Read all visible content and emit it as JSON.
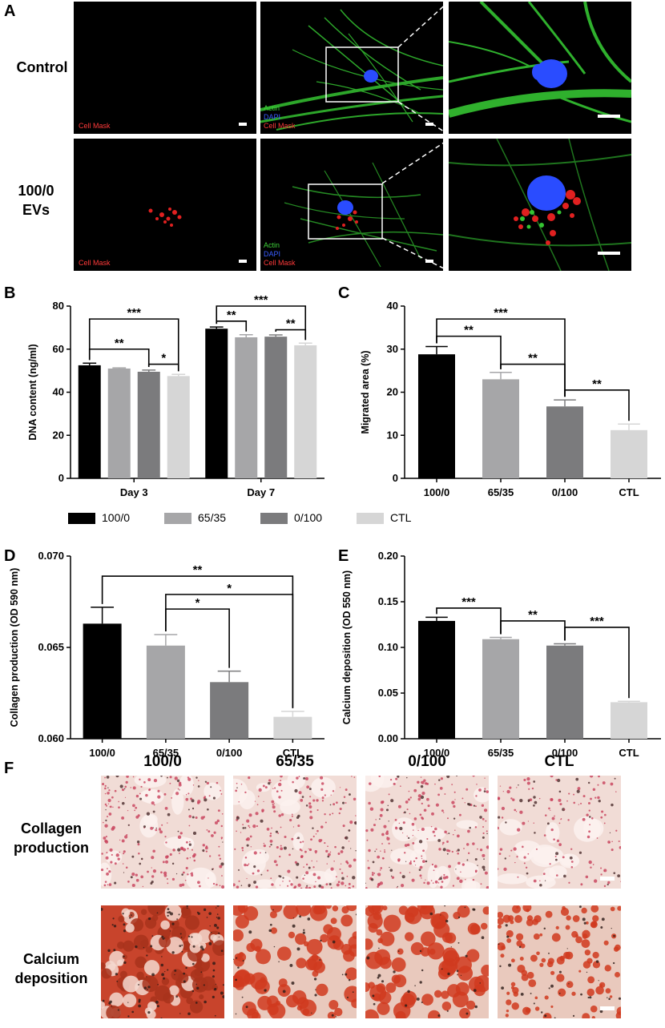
{
  "panels": {
    "A": "A",
    "B": "B",
    "C": "C",
    "D": "D",
    "E": "E",
    "F": "F"
  },
  "panel_a": {
    "rows": [
      {
        "label_line1": "Control",
        "label_line2": ""
      },
      {
        "label_line1": "100/0",
        "label_line2": "EVs"
      }
    ],
    "channel_cellmask": "Cell Mask",
    "channel_actin": "Actin",
    "channel_dapi": "DAPI",
    "colors": {
      "actin": "#3fd23a",
      "dapi": "#2a4cff",
      "cellmask": "#ff2a2a"
    }
  },
  "legend": [
    {
      "name": "100/0",
      "color": "#000000"
    },
    {
      "name": "65/35",
      "color": "#a6a6a8"
    },
    {
      "name": "0/100",
      "color": "#7b7b7d"
    },
    {
      "name": "CTL",
      "color": "#d6d6d6"
    }
  ],
  "chart_data": [
    {
      "panel": "B",
      "type": "bar",
      "ylabel": "DNA content (ng/ml)",
      "ylim": [
        0,
        80
      ],
      "yticks": [
        0,
        20,
        40,
        60,
        80
      ],
      "categories": [
        "Day 3",
        "Day 7"
      ],
      "series": [
        {
          "name": "100/0",
          "values": [
            52.5,
            69.5
          ],
          "errors": [
            1.0,
            0.8
          ]
        },
        {
          "name": "65/35",
          "values": [
            51,
            65.5
          ],
          "errors": [
            0.3,
            1.2
          ]
        },
        {
          "name": "0/100",
          "values": [
            49.5,
            65.8
          ],
          "errors": [
            0.8,
            0.8
          ]
        },
        {
          "name": "CTL",
          "values": [
            47.5,
            61.8
          ],
          "errors": [
            0.8,
            1.0
          ]
        }
      ],
      "brackets": [
        {
          "group": 0,
          "from": 0,
          "to": 3,
          "label": "***",
          "y": 74
        },
        {
          "group": 0,
          "from": 0,
          "to": 2,
          "label": "**",
          "y": 60
        },
        {
          "group": 0,
          "from": 2,
          "to": 3,
          "label": "*",
          "y": 53
        },
        {
          "group": 1,
          "from": 0,
          "to": 3,
          "label": "***",
          "y": 80
        },
        {
          "group": 1,
          "from": 0,
          "to": 1,
          "label": "**",
          "y": 73
        },
        {
          "group": 1,
          "from": 2,
          "to": 3,
          "label": "**",
          "y": 69
        }
      ]
    },
    {
      "panel": "C",
      "type": "bar",
      "ylabel": "Migrated area (%)",
      "ylim": [
        0,
        40
      ],
      "yticks": [
        0,
        10,
        20,
        30,
        40
      ],
      "categories": [
        "100/0",
        "65/35",
        "0/100",
        "CTL"
      ],
      "values": [
        28.8,
        23,
        16.7,
        11.2
      ],
      "errors": [
        1.8,
        1.6,
        1.5,
        1.4
      ],
      "brackets": [
        {
          "from": 0,
          "to": 2,
          "label": "***",
          "y": 37
        },
        {
          "from": 0,
          "to": 1,
          "label": "**",
          "y": 33
        },
        {
          "from": 1,
          "to": 2,
          "label": "**",
          "y": 26.5
        },
        {
          "from": 2,
          "to": 3,
          "label": "**",
          "y": 20.5
        }
      ]
    },
    {
      "panel": "D",
      "type": "bar",
      "ylabel": "Collagen production (OD 590 nm)",
      "ylim": [
        0.06,
        0.07
      ],
      "yticks": [
        0.06,
        0.065,
        0.07
      ],
      "ytick_labels": [
        "0.060",
        "0.065",
        "0.070"
      ],
      "categories": [
        "100/0",
        "65/35",
        "0/100",
        "CTL"
      ],
      "values": [
        0.0663,
        0.0651,
        0.0631,
        0.0612
      ],
      "errors": [
        0.0009,
        0.0006,
        0.0006,
        0.0003
      ],
      "brackets": [
        {
          "from": 0,
          "to": 3,
          "label": "**",
          "y": 0.0689
        },
        {
          "from": 1,
          "to": 3,
          "label": "*",
          "y": 0.0679
        },
        {
          "from": 1,
          "to": 2,
          "label": "*",
          "y": 0.0671
        }
      ]
    },
    {
      "panel": "E",
      "type": "bar",
      "ylabel": "Calcium deposition (OD 550 nm)",
      "ylim": [
        0,
        0.2
      ],
      "yticks": [
        0,
        0.05,
        0.1,
        0.15,
        0.2
      ],
      "ytick_labels": [
        "0.00",
        "0.05",
        "0.10",
        "0.15",
        "0.20"
      ],
      "categories": [
        "100/0",
        "65/35",
        "0/100",
        "CTL"
      ],
      "values": [
        0.129,
        0.109,
        0.102,
        0.04
      ],
      "errors": [
        0.004,
        0.002,
        0.002,
        0.001
      ],
      "brackets": [
        {
          "from": 0,
          "to": 1,
          "label": "***",
          "y": 0.143
        },
        {
          "from": 1,
          "to": 2,
          "label": "**",
          "y": 0.129
        },
        {
          "from": 2,
          "to": 3,
          "label": "***",
          "y": 0.122
        }
      ]
    }
  ],
  "panel_f": {
    "columns": [
      "100/0",
      "65/35",
      "0/100",
      "CTL"
    ],
    "rows": [
      {
        "line1": "Collagen",
        "line2": "production"
      },
      {
        "line1": "Calcium",
        "line2": "deposition"
      }
    ]
  }
}
